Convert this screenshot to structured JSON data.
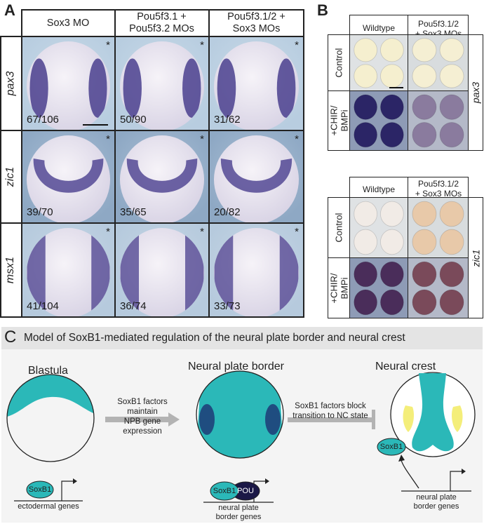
{
  "panels": {
    "a": "A",
    "b": "B",
    "c": "C"
  },
  "panel_a": {
    "columns": [
      "Sox3 MO",
      "Pou5f3.1 +\nPou5f3.2 MOs",
      "Pou5f3.1/2 +\nSox3 MOs"
    ],
    "rows": [
      {
        "gene": "pax3",
        "counts": [
          "67/106",
          "50/90",
          "31/62"
        ]
      },
      {
        "gene": "zic1",
        "counts": [
          "39/70",
          "35/65",
          "20/82"
        ]
      },
      {
        "gene": "msx1",
        "counts": [
          "41/104",
          "36/74",
          "33/73"
        ]
      }
    ],
    "asterisk": "*"
  },
  "panel_b": {
    "columns": [
      "Wildtype",
      "Pou5f3.1/2\n+ Sox3 MOs"
    ],
    "rows": [
      "Control",
      "+CHIR/\nBMPi"
    ],
    "genes": [
      "pax3",
      "zic1"
    ]
  },
  "panel_c": {
    "title": "Model of SoxB1-mediated regulation of the neural plate border and neural crest",
    "stages": [
      "Blastula",
      "Neural plate border",
      "Neural crest"
    ],
    "arrow1_text": "SoxB1 factors maintain\nNPB gene expression",
    "arrow2_text": "SoxB1 factors block\ntransition to NC state",
    "soxb1": "SoxB1",
    "pou": "POU",
    "genes1": "ectodermal genes",
    "genes2": "neural plate\nborder genes",
    "genes3": "neural plate\nborder genes"
  },
  "colors": {
    "teal": "#2bb8b8",
    "dark_blue": "#1f4d80",
    "yellow": "#f4ee7a",
    "navy": "#1b1846",
    "stain": "#4a3f8e",
    "gray_arrow": "#b3b3b3"
  }
}
